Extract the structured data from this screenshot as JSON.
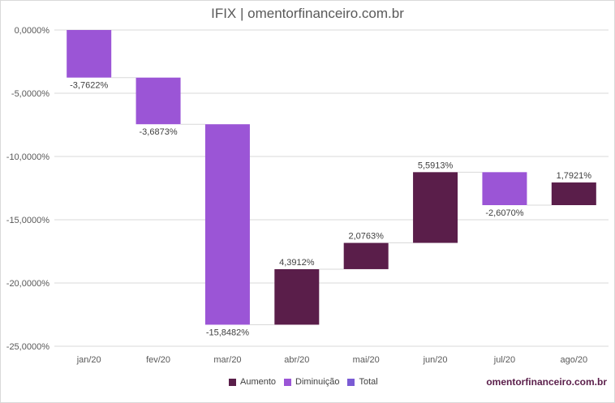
{
  "chart_data": {
    "type": "waterfall",
    "title": "IFIX | omentorfinanceiro.com.br",
    "categories": [
      "jan/20",
      "fev/20",
      "mar/20",
      "abr/20",
      "mai/20",
      "jun/20",
      "jul/20",
      "ago/20"
    ],
    "values": [
      -3.7622,
      -3.6873,
      -15.8482,
      4.3912,
      2.0763,
      5.5913,
      -2.607,
      1.7921
    ],
    "value_labels": [
      "-3,7622%",
      "-3,6873%",
      "-15,8482%",
      "4,3912%",
      "2,0763%",
      "5,5913%",
      "-2,6070%",
      "1,7921%"
    ],
    "ylim": [
      -25,
      0
    ],
    "yticks": [
      0,
      -5,
      -10,
      -15,
      -20,
      -25
    ],
    "ytick_labels": [
      "0,0000%",
      "-5,0000%",
      "-10,0000%",
      "-15,0000%",
      "-20,0000%",
      "-25,0000%"
    ],
    "grid": true,
    "legend_position": "bottom",
    "legend": [
      {
        "name": "Aumento",
        "color": "#5a1e4a"
      },
      {
        "name": "Diminuição",
        "color": "#9b55d6"
      },
      {
        "name": "Total",
        "color": "#7a5bd4"
      }
    ],
    "colors": {
      "increase": "#5a1e4a",
      "decrease": "#9b55d6",
      "total": "#7a5bd4"
    }
  },
  "watermark": "omentorfinanceiro.com.br"
}
